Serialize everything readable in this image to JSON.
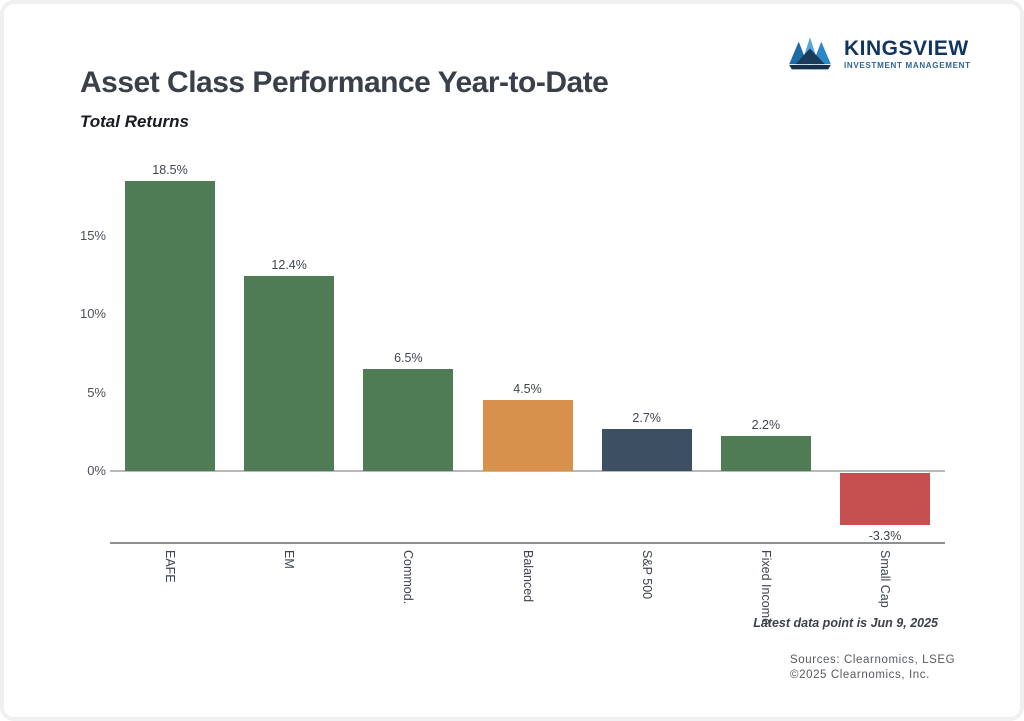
{
  "logo": {
    "name": "KINGSVIEW",
    "tagline": "INVESTMENT MANAGEMENT",
    "brand_color": "#12355e",
    "tagline_color": "#2f6593"
  },
  "header": {
    "title": "Asset Class Performance Year-to-Date",
    "subtitle": "Total Returns"
  },
  "chart_data": {
    "type": "bar",
    "title": "Asset Class Performance Year-to-Date",
    "subtitle": "Total Returns",
    "categories": [
      "EAFE",
      "EM",
      "Commod.",
      "Balanced",
      "S&P 500",
      "Fixed Income",
      "Small Cap"
    ],
    "values": [
      18.5,
      12.4,
      6.5,
      4.5,
      2.7,
      2.2,
      -3.3
    ],
    "bar_labels": [
      "18.5%",
      "12.4%",
      "6.5%",
      "4.5%",
      "2.7%",
      "2.2%",
      "-3.3%"
    ],
    "bar_colors": [
      "#507c55",
      "#507c55",
      "#507c55",
      "#d8914d",
      "#3c4f63",
      "#507c55",
      "#c54f4e"
    ],
    "yticks": [
      0,
      5,
      10,
      15
    ],
    "ytick_labels": [
      "0%",
      "5%",
      "10%",
      "15%"
    ],
    "ylim": [
      -5.5,
      20
    ],
    "xlabel": "",
    "ylabel": "",
    "grid": "off",
    "legend": "none"
  },
  "footer": {
    "latest_note": "Latest data point is Jun 9, 2025",
    "source_line1": "Sources: Clearnomics, LSEG",
    "source_line2": "©2025 Clearnomics, Inc."
  }
}
